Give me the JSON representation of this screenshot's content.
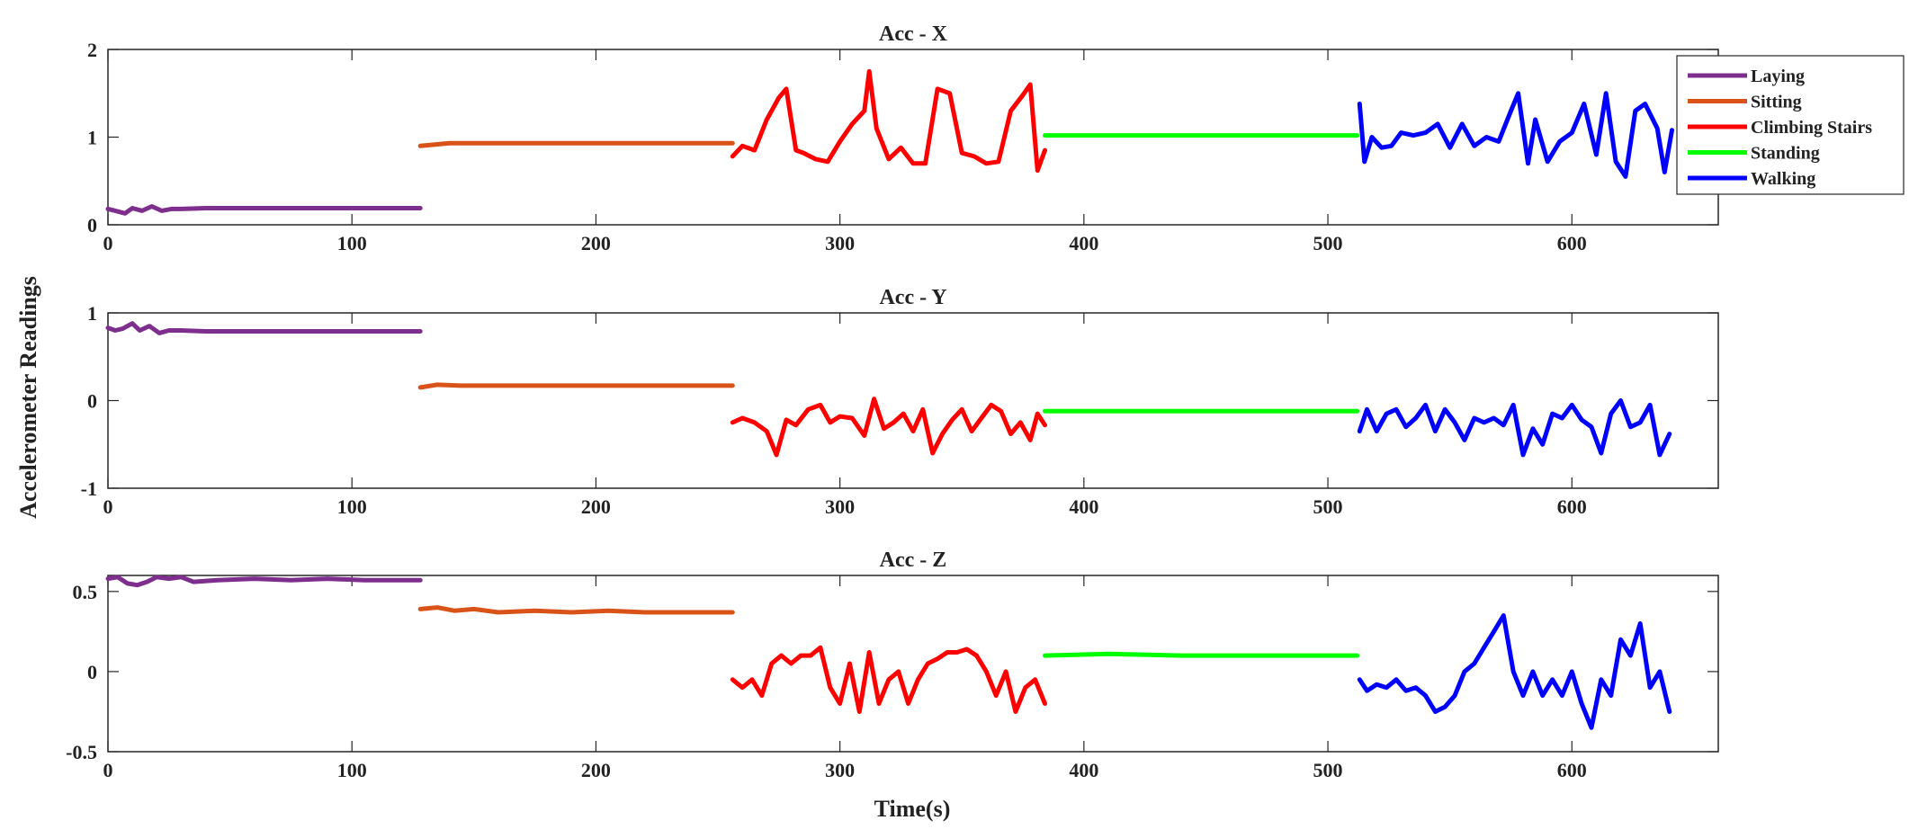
{
  "chart_data": {
    "type": "line",
    "xlabel": "Time(s)",
    "ylabel": "Accelerometer Readings",
    "xlim": [
      0,
      660
    ],
    "xticks": [
      0,
      100,
      200,
      300,
      400,
      500,
      600
    ],
    "grid": false,
    "legend_position": "top-right",
    "activities": [
      {
        "name": "Laying",
        "color": "#7E2F8E",
        "x_range": [
          0,
          128
        ]
      },
      {
        "name": "Sitting",
        "color": "#D95319",
        "x_range": [
          128,
          256
        ]
      },
      {
        "name": "Climbing Stairs",
        "color": "#FF0000",
        "x_range": [
          256,
          384
        ]
      },
      {
        "name": "Standing",
        "color": "#00FF00",
        "x_range": [
          384,
          512
        ]
      },
      {
        "name": "Walking",
        "color": "#0000FF",
        "x_range": [
          512,
          640
        ]
      }
    ],
    "panels": [
      {
        "title": "Acc - X",
        "ylim": [
          0,
          2
        ],
        "yticks": [
          {
            "v": 0,
            "label": "0"
          },
          {
            "v": 1,
            "label": "1"
          },
          {
            "v": 2,
            "label": "2"
          }
        ],
        "series": [
          {
            "activity": "Laying",
            "x": [
              0,
              3,
              7,
              10,
              14,
              18,
              22,
              26,
              30,
              40,
              55,
              70,
              85,
              100,
              115,
              128
            ],
            "y": [
              0.18,
              0.16,
              0.13,
              0.19,
              0.16,
              0.21,
              0.16,
              0.18,
              0.18,
              0.19,
              0.19,
              0.19,
              0.19,
              0.19,
              0.19,
              0.19
            ]
          },
          {
            "activity": "Sitting",
            "x": [
              128,
              140,
              160,
              180,
              200,
              220,
              240,
              256
            ],
            "y": [
              0.9,
              0.93,
              0.93,
              0.93,
              0.93,
              0.93,
              0.93,
              0.93
            ]
          },
          {
            "activity": "Climbing Stairs",
            "x": [
              256,
              260,
              265,
              270,
              275,
              278,
              282,
              285,
              290,
              295,
              300,
              305,
              310,
              312,
              315,
              320,
              325,
              330,
              335,
              340,
              345,
              350,
              355,
              360,
              365,
              370,
              375,
              378,
              381,
              384
            ],
            "y": [
              0.78,
              0.9,
              0.85,
              1.2,
              1.45,
              1.55,
              0.85,
              0.82,
              0.75,
              0.72,
              0.95,
              1.15,
              1.3,
              1.75,
              1.1,
              0.75,
              0.88,
              0.7,
              0.7,
              1.55,
              1.5,
              0.82,
              0.78,
              0.7,
              0.72,
              1.3,
              1.48,
              1.6,
              0.62,
              0.85
            ]
          },
          {
            "activity": "Standing",
            "x": [
              384,
              420,
              460,
              512
            ],
            "y": [
              1.02,
              1.02,
              1.02,
              1.02
            ]
          },
          {
            "activity": "Walking",
            "x": [
              513,
              515,
              518,
              522,
              526,
              530,
              535,
              540,
              545,
              550,
              555,
              560,
              565,
              570,
              575,
              578,
              582,
              585,
              590,
              595,
              600,
              605,
              610,
              614,
              618,
              622,
              626,
              630,
              635,
              638,
              641
            ],
            "y": [
              1.38,
              0.72,
              1.0,
              0.88,
              0.9,
              1.05,
              1.02,
              1.05,
              1.15,
              0.88,
              1.15,
              0.9,
              1.0,
              0.95,
              1.3,
              1.5,
              0.7,
              1.2,
              0.72,
              0.95,
              1.05,
              1.38,
              0.8,
              1.5,
              0.72,
              0.55,
              1.3,
              1.38,
              1.1,
              0.6,
              1.08
            ]
          }
        ]
      },
      {
        "title": "Acc - Y",
        "ylim": [
          -1,
          1
        ],
        "yticks": [
          {
            "v": -1,
            "label": "-1"
          },
          {
            "v": 0,
            "label": "0"
          },
          {
            "v": 1,
            "label": "1"
          }
        ],
        "series": [
          {
            "activity": "Laying",
            "x": [
              0,
              3,
              6,
              10,
              13,
              17,
              21,
              25,
              30,
              40,
              55,
              70,
              85,
              100,
              115,
              128
            ],
            "y": [
              0.83,
              0.8,
              0.82,
              0.88,
              0.8,
              0.85,
              0.77,
              0.8,
              0.8,
              0.79,
              0.79,
              0.79,
              0.79,
              0.79,
              0.79,
              0.79
            ]
          },
          {
            "activity": "Sitting",
            "x": [
              128,
              135,
              145,
              160,
              180,
              200,
              220,
              240,
              256
            ],
            "y": [
              0.15,
              0.18,
              0.17,
              0.17,
              0.17,
              0.17,
              0.17,
              0.17,
              0.17
            ]
          },
          {
            "activity": "Climbing Stairs",
            "x": [
              256,
              260,
              265,
              270,
              274,
              278,
              282,
              287,
              292,
              296,
              300,
              305,
              310,
              314,
              318,
              322,
              326,
              330,
              334,
              338,
              342,
              346,
              350,
              354,
              358,
              362,
              366,
              370,
              374,
              378,
              381,
              384
            ],
            "y": [
              -0.25,
              -0.2,
              -0.25,
              -0.35,
              -0.62,
              -0.22,
              -0.28,
              -0.1,
              -0.05,
              -0.25,
              -0.18,
              -0.2,
              -0.4,
              0.02,
              -0.32,
              -0.25,
              -0.15,
              -0.35,
              -0.1,
              -0.6,
              -0.38,
              -0.22,
              -0.1,
              -0.35,
              -0.2,
              -0.05,
              -0.12,
              -0.38,
              -0.25,
              -0.45,
              -0.15,
              -0.28
            ]
          },
          {
            "activity": "Standing",
            "x": [
              384,
              420,
              460,
              512
            ],
            "y": [
              -0.12,
              -0.12,
              -0.12,
              -0.12
            ]
          },
          {
            "activity": "Walking",
            "x": [
              513,
              516,
              520,
              524,
              528,
              532,
              536,
              540,
              544,
              548,
              552,
              556,
              560,
              564,
              568,
              572,
              576,
              580,
              584,
              588,
              592,
              596,
              600,
              604,
              608,
              612,
              616,
              620,
              624,
              628,
              632,
              636,
              640
            ],
            "y": [
              -0.35,
              -0.1,
              -0.35,
              -0.15,
              -0.1,
              -0.3,
              -0.2,
              -0.05,
              -0.35,
              -0.1,
              -0.25,
              -0.45,
              -0.2,
              -0.25,
              -0.2,
              -0.28,
              -0.05,
              -0.62,
              -0.32,
              -0.5,
              -0.15,
              -0.2,
              -0.05,
              -0.22,
              -0.3,
              -0.6,
              -0.15,
              0.0,
              -0.3,
              -0.25,
              -0.05,
              -0.62,
              -0.38
            ]
          }
        ]
      },
      {
        "title": "Acc - Z",
        "ylim": [
          -0.5,
          0.6
        ],
        "yticks": [
          {
            "v": -0.5,
            "label": "-0.5"
          },
          {
            "v": 0,
            "label": "0"
          },
          {
            "v": 0.5,
            "label": "0.5"
          }
        ],
        "series": [
          {
            "activity": "Laying",
            "x": [
              0,
              4,
              8,
              12,
              16,
              20,
              25,
              30,
              35,
              45,
              60,
              75,
              90,
              105,
              115,
              128
            ],
            "y": [
              0.58,
              0.59,
              0.55,
              0.54,
              0.56,
              0.59,
              0.58,
              0.59,
              0.56,
              0.57,
              0.58,
              0.57,
              0.58,
              0.57,
              0.57,
              0.57
            ]
          },
          {
            "activity": "Sitting",
            "x": [
              128,
              135,
              142,
              150,
              160,
              175,
              190,
              205,
              220,
              240,
              256
            ],
            "y": [
              0.39,
              0.4,
              0.38,
              0.39,
              0.37,
              0.38,
              0.37,
              0.38,
              0.37,
              0.37,
              0.37
            ]
          },
          {
            "activity": "Climbing Stairs",
            "x": [
              256,
              260,
              264,
              268,
              272,
              276,
              280,
              284,
              288,
              292,
              296,
              300,
              304,
              308,
              312,
              316,
              320,
              324,
              328,
              332,
              336,
              340,
              344,
              348,
              352,
              356,
              360,
              364,
              368,
              372,
              376,
              380,
              384
            ],
            "y": [
              -0.05,
              -0.1,
              -0.05,
              -0.15,
              0.05,
              0.1,
              0.05,
              0.1,
              0.1,
              0.15,
              -0.1,
              -0.2,
              0.05,
              -0.25,
              0.12,
              -0.2,
              -0.05,
              0.0,
              -0.2,
              -0.05,
              0.05,
              0.08,
              0.12,
              0.12,
              0.14,
              0.1,
              0.0,
              -0.15,
              0.0,
              -0.25,
              -0.1,
              -0.05,
              -0.2
            ]
          },
          {
            "activity": "Standing",
            "x": [
              384,
              410,
              440,
              470,
              500,
              512
            ],
            "y": [
              0.1,
              0.11,
              0.1,
              0.1,
              0.1,
              0.1
            ]
          },
          {
            "activity": "Walking",
            "x": [
              513,
              516,
              520,
              524,
              528,
              532,
              536,
              540,
              544,
              548,
              552,
              556,
              560,
              564,
              568,
              572,
              576,
              580,
              584,
              588,
              592,
              596,
              600,
              604,
              608,
              612,
              616,
              620,
              624,
              628,
              632,
              636,
              640
            ],
            "y": [
              -0.05,
              -0.12,
              -0.08,
              -0.1,
              -0.05,
              -0.12,
              -0.1,
              -0.15,
              -0.25,
              -0.22,
              -0.15,
              0.0,
              0.05,
              0.15,
              0.25,
              0.35,
              0.0,
              -0.15,
              0.0,
              -0.15,
              -0.05,
              -0.15,
              0.0,
              -0.2,
              -0.35,
              -0.05,
              -0.15,
              0.2,
              0.1,
              0.3,
              -0.1,
              0.0,
              -0.25
            ]
          }
        ]
      }
    ]
  }
}
